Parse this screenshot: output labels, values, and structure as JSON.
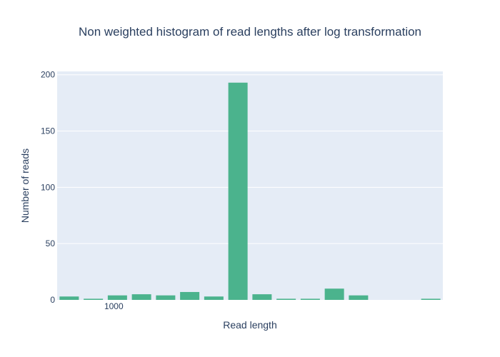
{
  "chart_data": {
    "type": "bar",
    "title": "Non weighted histogram of read lengths after log transformation",
    "xlabel": "Read length",
    "ylabel": "Number of reads",
    "ylim": [
      0,
      203
    ],
    "yticks": [
      0,
      50,
      100,
      150,
      200
    ],
    "xticks": [
      {
        "label": "1000",
        "bin_index": 2.35
      }
    ],
    "bins": 16,
    "values": [
      3,
      1,
      4,
      5,
      4,
      7,
      3,
      193,
      5,
      1,
      1,
      10,
      4,
      0,
      0,
      1
    ],
    "grid": true,
    "legend": "none",
    "colors": {
      "bar": "#4bb38d",
      "plot_bg": "#e5ecf6",
      "grid": "#ffffff",
      "text": "#2a3f5f"
    }
  }
}
